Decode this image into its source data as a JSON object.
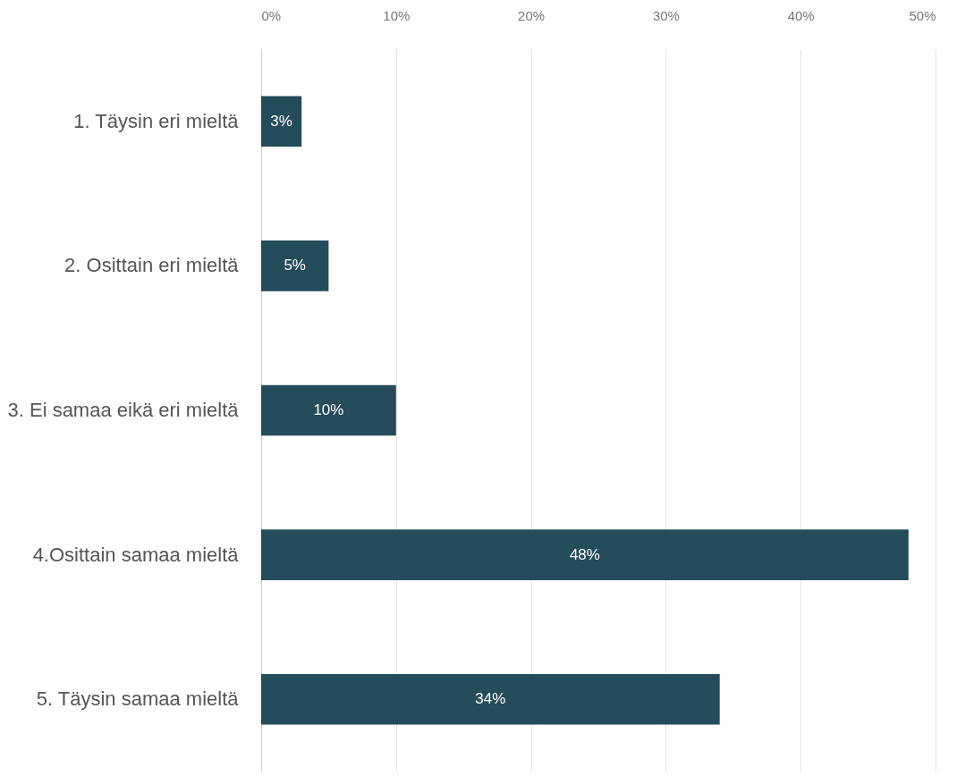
{
  "chart_data": {
    "type": "bar",
    "orientation": "horizontal",
    "categories": [
      "1. Täysin eri mieltä",
      "2. Osittain eri mieltä",
      "3. Ei samaa eikä eri mieltä",
      "4.Osittain samaa mieltä",
      "5. Täysin samaa mieltä"
    ],
    "values": [
      3,
      5,
      10,
      48,
      34
    ],
    "value_labels": [
      "3%",
      "5%",
      "10%",
      "48%",
      "34%"
    ],
    "color": "#244c5a",
    "xlim": [
      0,
      50
    ],
    "xticks": [
      {
        "value": 0,
        "label": "0%"
      },
      {
        "value": 10,
        "label": "10%"
      },
      {
        "value": 20,
        "label": "20%"
      },
      {
        "value": 30,
        "label": "30%"
      },
      {
        "value": 40,
        "label": "40%"
      },
      {
        "value": 50,
        "label": "50%"
      }
    ],
    "grid": "x"
  }
}
